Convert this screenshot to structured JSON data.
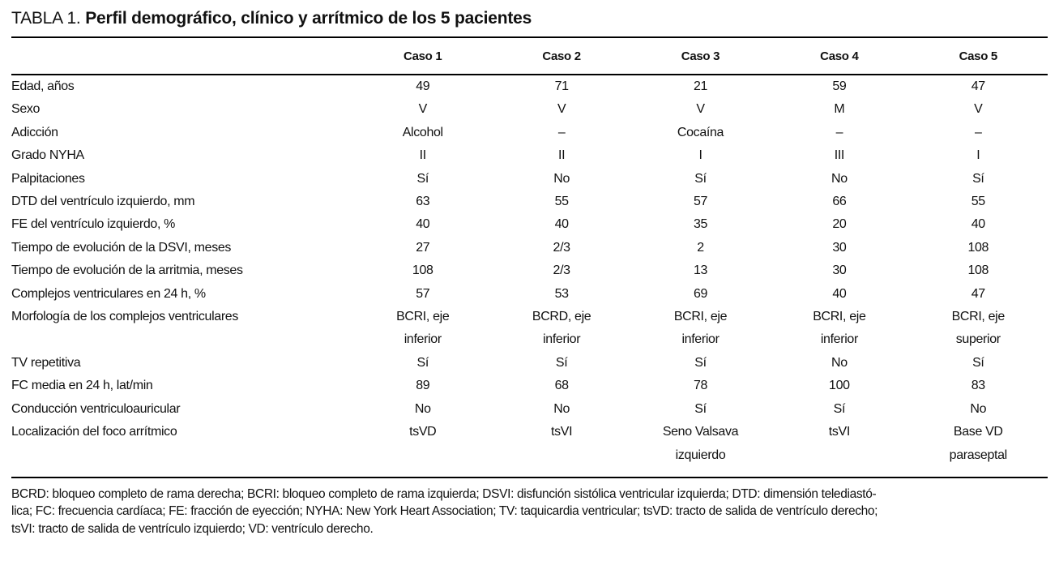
{
  "title": {
    "prefix": "TABLA 1.",
    "text": "Perfil demográfico, clínico y arrítmico de los 5 pacientes"
  },
  "table": {
    "columns": [
      "Caso 1",
      "Caso 2",
      "Caso 3",
      "Caso 4",
      "Caso 5"
    ],
    "rows": [
      {
        "label": "Edad, años",
        "values": [
          "49",
          "71",
          "21",
          "59",
          "47"
        ]
      },
      {
        "label": "Sexo",
        "values": [
          "V",
          "V",
          "V",
          "M",
          "V"
        ]
      },
      {
        "label": "Adicción",
        "values": [
          "Alcohol",
          "–",
          "Cocaína",
          "–",
          "–"
        ]
      },
      {
        "label": "Grado NYHA",
        "values": [
          "II",
          "II",
          "I",
          "III",
          "I"
        ]
      },
      {
        "label": "Palpitaciones",
        "values": [
          "Sí",
          "No",
          "Sí",
          "No",
          "Sí"
        ]
      },
      {
        "label": "DTD del ventrículo izquierdo, mm",
        "values": [
          "63",
          "55",
          "57",
          "66",
          "55"
        ]
      },
      {
        "label": "FE del ventrículo izquierdo, %",
        "values": [
          "40",
          "40",
          "35",
          "20",
          "40"
        ]
      },
      {
        "label": "Tiempo de evolución de la DSVI, meses",
        "values": [
          "27",
          "2/3",
          "2",
          "30",
          "108"
        ]
      },
      {
        "label": "Tiempo de evolución de la arritmia, meses",
        "values": [
          "108",
          "2/3",
          "13",
          "30",
          "108"
        ]
      },
      {
        "label": "Complejos ventriculares en 24 h, %",
        "values": [
          "57",
          "53",
          "69",
          "40",
          "47"
        ]
      },
      {
        "label": "Morfología de los complejos ventriculares",
        "values": [
          "BCRI, eje\ninferior",
          "BCRD, eje\ninferior",
          "BCRI, eje\ninferior",
          "BCRI, eje\ninferior",
          "BCRI, eje\nsuperior"
        ]
      },
      {
        "label": "TV repetitiva",
        "values": [
          "Sí",
          "Sí",
          "Sí",
          "No",
          "Sí"
        ]
      },
      {
        "label": "FC media en 24 h, lat/min",
        "values": [
          "89",
          "68",
          "78",
          "100",
          "83"
        ]
      },
      {
        "label": "Conducción ventriculoauricular",
        "values": [
          "No",
          "No",
          "Sí",
          "Sí",
          "No"
        ]
      },
      {
        "label": "Localización del foco arrítmico",
        "values": [
          "tsVD",
          "tsVI",
          "Seno Valsava\nizquierdo",
          "tsVI",
          "Base VD\nparaseptal"
        ]
      }
    ]
  },
  "footnote": "BCRD: bloqueo completo de rama derecha; BCRI: bloqueo completo de rama izquierda; DSVI: disfunción sistólica ventricular izquierda; DTD: dimensión telediastó-\nlica; FC: frecuencia cardíaca; FE: fracción de eyección; NYHA: New York Heart Association; TV: taquicardia ventricular; tsVD: tracto de salida de ventrículo derecho;\ntsVI: tracto de salida de ventrículo izquierdo; VD: ventrículo derecho.",
  "colors": {
    "text": "#111111",
    "rule": "#000000",
    "background": "#ffffff"
  }
}
